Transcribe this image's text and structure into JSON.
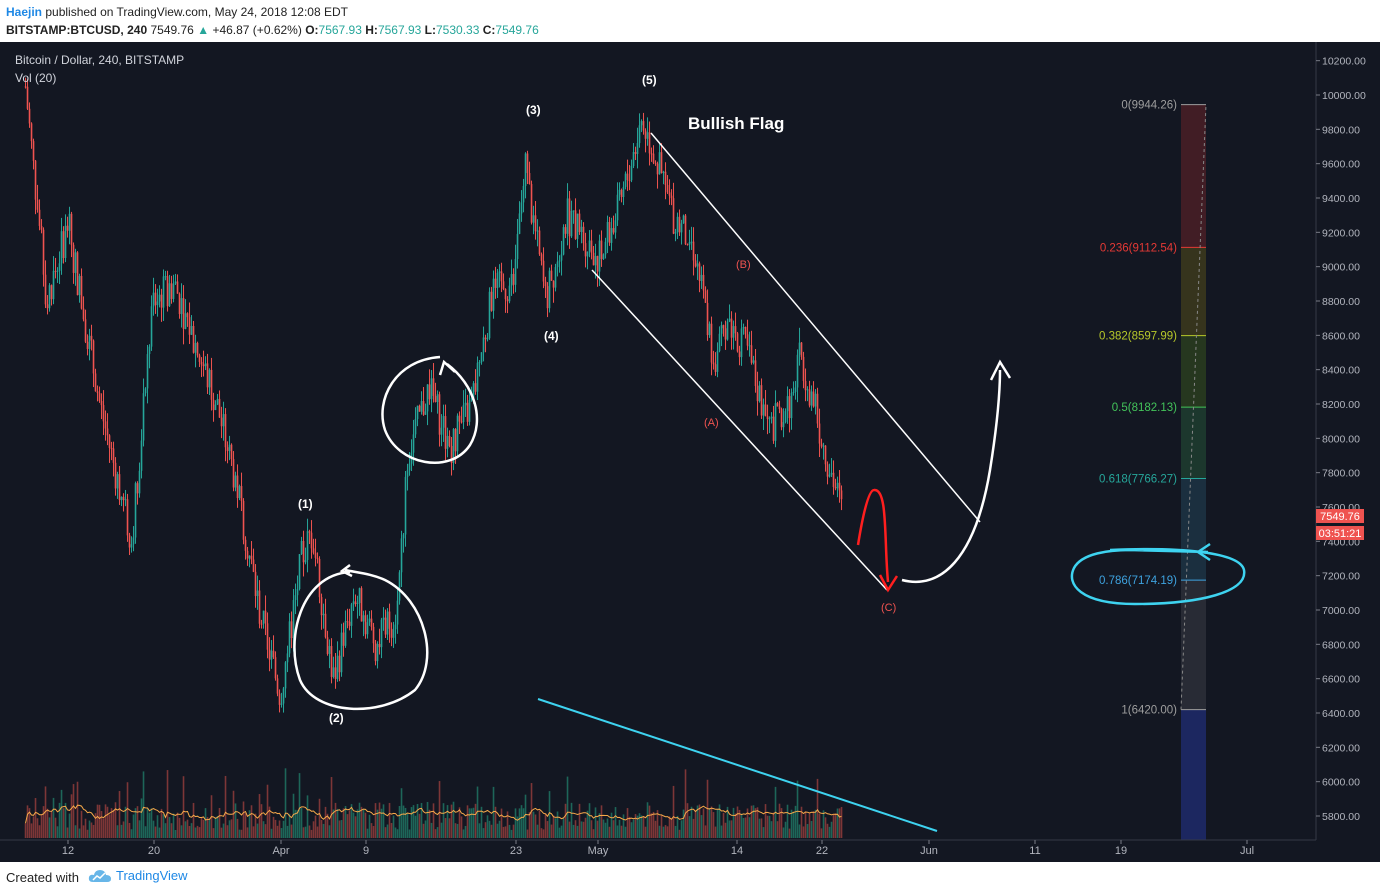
{
  "header": {
    "author": "Haejin",
    "published": "published on TradingView.com, May 24, 2018 12:08 EDT",
    "symbol": "BITSTAMP:BTCUSD, 240",
    "last": "7549.76",
    "change": "+46.87 (+0.62%)",
    "open_label": "O:",
    "open": "7567.93",
    "high_label": "H:",
    "high": "7567.93",
    "low_label": "L:",
    "low": "7530.33",
    "close_label": "C:",
    "close": "7549.76"
  },
  "legend": {
    "title": "Bitcoin / Dollar, 240, BITSTAMP",
    "volume": "Vol (20)"
  },
  "annotations": {
    "bullish_flag": "Bullish Flag",
    "waves": [
      "(1)",
      "(2)",
      "(3)",
      "(4)",
      "(5)"
    ],
    "corrective": [
      "(A)",
      "(B)",
      "(C)"
    ]
  },
  "price_tags": {
    "last_price": "7549.76",
    "countdown": "03:51:21"
  },
  "colors": {
    "background": "#131722",
    "up_candle": "#26a69a",
    "down_candle": "#ef5350",
    "drawing_white": "#ffffff",
    "drawing_cyan": "#3ed3f0",
    "drawing_red": "#ff1f1f",
    "volume_ma": "#f7a94a"
  },
  "chart_data": {
    "type": "candlestick",
    "title": "Bitcoin / Dollar, 240, BITSTAMP",
    "x_tick_labels": [
      "12",
      "20",
      "Apr",
      "9",
      "23",
      "May",
      "14",
      "22",
      "Jun",
      "11",
      "19",
      "Jul"
    ],
    "y_tick_labels": [
      "10200.00",
      "10000.00",
      "9800.00",
      "9600.00",
      "9400.00",
      "9200.00",
      "9000.00",
      "8800.00",
      "8600.00",
      "8400.00",
      "8200.00",
      "8000.00",
      "7800.00",
      "7600.00",
      "7400.00",
      "7200.00",
      "7000.00",
      "6800.00",
      "6600.00",
      "6400.00",
      "6200.00",
      "6000.00",
      "5800.00"
    ],
    "ylim": [
      5700,
      10260
    ],
    "price_path": [
      {
        "x": "Mar 8",
        "y": 10050
      },
      {
        "x": "Mar 10",
        "y": 8800
      },
      {
        "x": "Mar 12",
        "y": 9250
      },
      {
        "x": "Mar 15",
        "y": 8200
      },
      {
        "x": "Mar 18",
        "y": 7400
      },
      {
        "x": "Mar 20",
        "y": 8800
      },
      {
        "x": "Mar 22",
        "y": 8900
      },
      {
        "x": "Mar 26",
        "y": 8200
      },
      {
        "x": "Mar 28",
        "y": 7700
      },
      {
        "x": "Mar 30",
        "y": 7000
      },
      {
        "x": "Apr 1",
        "y": 6500
      },
      {
        "x": "Apr 3",
        "y": 7300
      },
      {
        "x": "Apr 4",
        "y": 7450
      },
      {
        "x": "Apr 6",
        "y": 6600
      },
      {
        "x": "Apr 8",
        "y": 7100
      },
      {
        "x": "Apr 10",
        "y": 6800
      },
      {
        "x": "Apr 12",
        "y": 7000
      },
      {
        "x": "Apr 13",
        "y": 7900
      },
      {
        "x": "Apr 15",
        "y": 8300
      },
      {
        "x": "Apr 17",
        "y": 7950
      },
      {
        "x": "Apr 19",
        "y": 8200
      },
      {
        "x": "Apr 21",
        "y": 8850
      },
      {
        "x": "Apr 23",
        "y": 8900
      },
      {
        "x": "Apr 24",
        "y": 9600
      },
      {
        "x": "Apr 26",
        "y": 8800
      },
      {
        "x": "Apr 28",
        "y": 9300
      },
      {
        "x": "May 1",
        "y": 9050
      },
      {
        "x": "May 3",
        "y": 9350
      },
      {
        "x": "May 5",
        "y": 9850
      },
      {
        "x": "May 6",
        "y": 9700
      },
      {
        "x": "May 8",
        "y": 9300
      },
      {
        "x": "May 10",
        "y": 9100
      },
      {
        "x": "May 12",
        "y": 8400
      },
      {
        "x": "May 13",
        "y": 8700
      },
      {
        "x": "May 15",
        "y": 8500
      },
      {
        "x": "May 17",
        "y": 8050
      },
      {
        "x": "May 19",
        "y": 8200
      },
      {
        "x": "May 20",
        "y": 8500
      },
      {
        "x": "May 22",
        "y": 8000
      },
      {
        "x": "May 24",
        "y": 7549.76
      }
    ],
    "fibonacci": [
      {
        "level": "0",
        "price": 9944.26,
        "text": "0(9944.26)",
        "color": "#9e9e9e"
      },
      {
        "level": "0.236",
        "price": 9112.54,
        "text": "0.236(9112.54)",
        "color": "#e53935"
      },
      {
        "level": "0.382",
        "price": 8597.99,
        "text": "0.382(8597.99)",
        "color": "#b7c82a"
      },
      {
        "level": "0.5",
        "price": 8182.13,
        "text": "0.5(8182.13)",
        "color": "#43c35a"
      },
      {
        "level": "0.618",
        "price": 7766.27,
        "text": "0.618(7766.27)",
        "color": "#26a69a"
      },
      {
        "level": "0.786",
        "price": 7174.19,
        "text": "0.786(7174.19)",
        "color": "#3ea3e0"
      },
      {
        "level": "1",
        "price": 6420.0,
        "text": "1(6420.00)",
        "color": "#9e9e9e"
      }
    ],
    "last_price": 7549.76
  },
  "footer": {
    "created_with": "Created with",
    "brand": "TradingView"
  }
}
